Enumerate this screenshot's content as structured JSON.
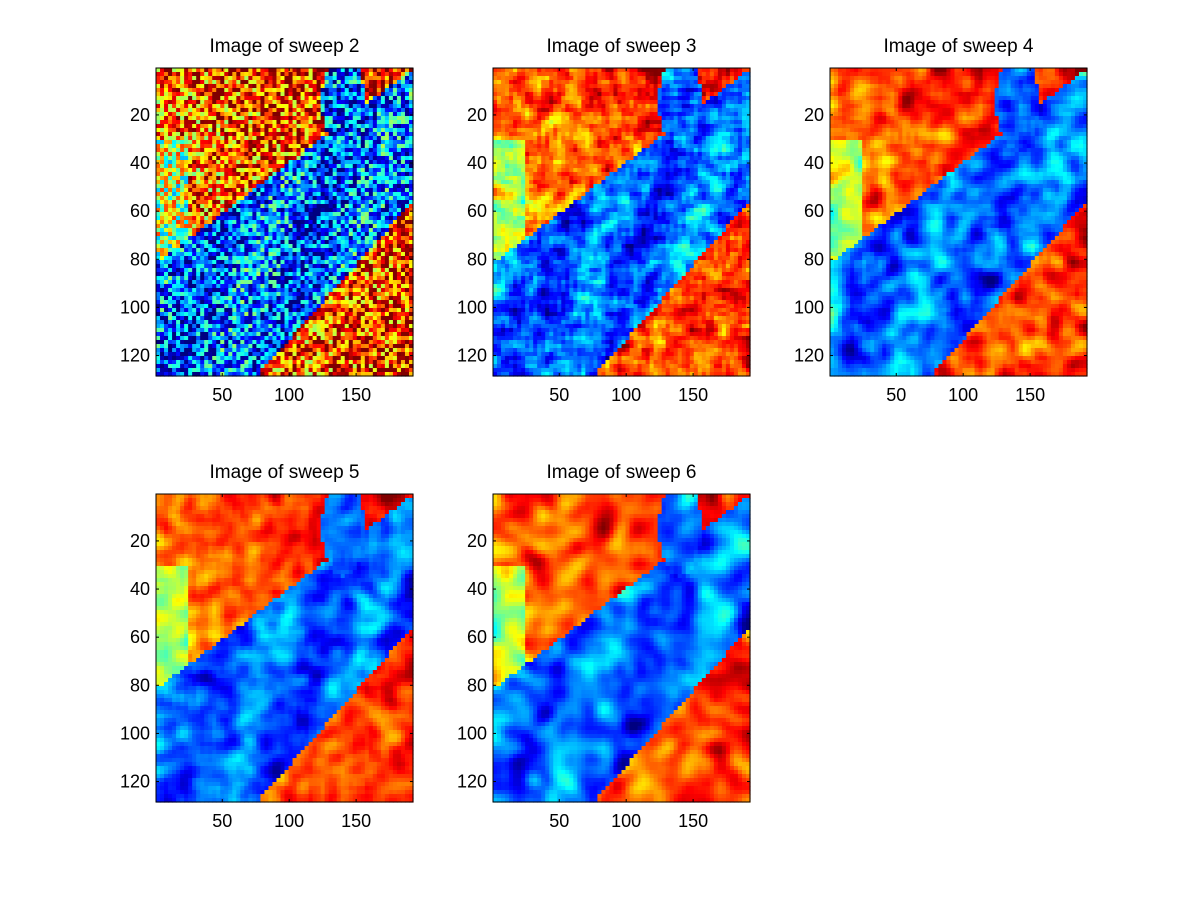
{
  "chart_data": [
    {
      "type": "heatmap",
      "title": "Image of sweep  2",
      "xlim": [
        1,
        192
      ],
      "ylim": [
        1,
        128
      ],
      "x_ticks": [
        50,
        100,
        150
      ],
      "y_ticks": [
        20,
        40,
        60,
        80,
        100,
        120
      ],
      "y_direction": "reversed",
      "colormap": "jet",
      "smoothness": 0.0
    },
    {
      "type": "heatmap",
      "title": "Image of sweep  3",
      "xlim": [
        1,
        192
      ],
      "ylim": [
        1,
        128
      ],
      "x_ticks": [
        50,
        100,
        150
      ],
      "y_ticks": [
        20,
        40,
        60,
        80,
        100,
        120
      ],
      "y_direction": "reversed",
      "colormap": "jet",
      "smoothness": 0.35
    },
    {
      "type": "heatmap",
      "title": "Image of sweep  4",
      "xlim": [
        1,
        192
      ],
      "ylim": [
        1,
        128
      ],
      "x_ticks": [
        50,
        100,
        150
      ],
      "y_ticks": [
        20,
        40,
        60,
        80,
        100,
        120
      ],
      "y_direction": "reversed",
      "colormap": "jet",
      "smoothness": 0.6
    },
    {
      "type": "heatmap",
      "title": "Image of sweep  5",
      "xlim": [
        1,
        192
      ],
      "ylim": [
        1,
        128
      ],
      "x_ticks": [
        50,
        100,
        150
      ],
      "y_ticks": [
        20,
        40,
        60,
        80,
        100,
        120
      ],
      "y_direction": "reversed",
      "colormap": "jet",
      "smoothness": 0.8
    },
    {
      "type": "heatmap",
      "title": "Image of sweep  6",
      "xlim": [
        1,
        192
      ],
      "ylim": [
        1,
        128
      ],
      "x_ticks": [
        50,
        100,
        150
      ],
      "y_ticks": [
        20,
        40,
        60,
        80,
        100,
        120
      ],
      "y_direction": "reversed",
      "colormap": "jet",
      "smoothness": 0.85
    }
  ]
}
